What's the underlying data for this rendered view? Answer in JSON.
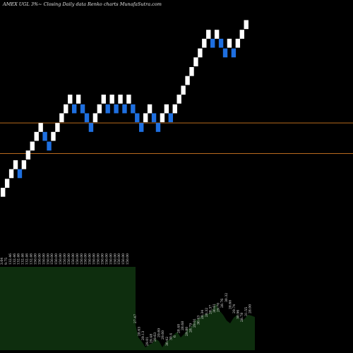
{
  "chart_data": {
    "type": "renko",
    "title": "AMEX UGL 3%~ Closing Daily data Renko charts MunafaSutra.com",
    "colors": {
      "background": "#000000",
      "up_brick": "#ffffff",
      "down_brick": "#1e6fe0",
      "reference_line": "#b86a1e",
      "volume_fill": "#0e2e0e",
      "volume_label": "#e0e0e0"
    },
    "reference_lines": [
      {
        "value": 49.5
      },
      {
        "value": 45.4
      }
    ],
    "y_range": [
      30,
      66
    ],
    "bricks": [
      {
        "index": 0,
        "direction": "up",
        "value": 40.2
      },
      {
        "index": 1,
        "direction": "up",
        "value": 41.4
      },
      {
        "index": 2,
        "direction": "up",
        "value": 42.7
      },
      {
        "index": 3,
        "direction": "up",
        "value": 43.9
      },
      {
        "index": 4,
        "direction": "down",
        "value": 42.7
      },
      {
        "index": 5,
        "direction": "up",
        "value": 43.9
      },
      {
        "index": 6,
        "direction": "up",
        "value": 45.2
      },
      {
        "index": 7,
        "direction": "up",
        "value": 46.4
      },
      {
        "index": 8,
        "direction": "up",
        "value": 47.7
      },
      {
        "index": 9,
        "direction": "up",
        "value": 48.9
      },
      {
        "index": 10,
        "direction": "down",
        "value": 47.7
      },
      {
        "index": 11,
        "direction": "down",
        "value": 46.4
      },
      {
        "index": 12,
        "direction": "up",
        "value": 47.7
      },
      {
        "index": 13,
        "direction": "up",
        "value": 48.9
      },
      {
        "index": 14,
        "direction": "up",
        "value": 50.2
      },
      {
        "index": 15,
        "direction": "up",
        "value": 51.4
      },
      {
        "index": 16,
        "direction": "up",
        "value": 52.7
      },
      {
        "index": 17,
        "direction": "down",
        "value": 51.4
      },
      {
        "index": 18,
        "direction": "up",
        "value": 52.7
      },
      {
        "index": 19,
        "direction": "down",
        "value": 51.4
      },
      {
        "index": 20,
        "direction": "down",
        "value": 50.2
      },
      {
        "index": 21,
        "direction": "down",
        "value": 48.9
      },
      {
        "index": 22,
        "direction": "up",
        "value": 50.2
      },
      {
        "index": 23,
        "direction": "up",
        "value": 51.4
      },
      {
        "index": 24,
        "direction": "up",
        "value": 52.7
      },
      {
        "index": 25,
        "direction": "down",
        "value": 51.4
      },
      {
        "index": 26,
        "direction": "up",
        "value": 52.7
      },
      {
        "index": 27,
        "direction": "down",
        "value": 51.4
      },
      {
        "index": 28,
        "direction": "up",
        "value": 52.7
      },
      {
        "index": 29,
        "direction": "down",
        "value": 51.4
      },
      {
        "index": 30,
        "direction": "up",
        "value": 52.7
      },
      {
        "index": 31,
        "direction": "down",
        "value": 51.4
      },
      {
        "index": 32,
        "direction": "down",
        "value": 50.2
      },
      {
        "index": 33,
        "direction": "down",
        "value": 48.9
      },
      {
        "index": 34,
        "direction": "up",
        "value": 50.2
      },
      {
        "index": 35,
        "direction": "up",
        "value": 51.4
      },
      {
        "index": 36,
        "direction": "down",
        "value": 50.2
      },
      {
        "index": 37,
        "direction": "down",
        "value": 48.9
      },
      {
        "index": 38,
        "direction": "up",
        "value": 50.2
      },
      {
        "index": 39,
        "direction": "up",
        "value": 51.4
      },
      {
        "index": 40,
        "direction": "down",
        "value": 50.2
      },
      {
        "index": 41,
        "direction": "up",
        "value": 51.4
      },
      {
        "index": 42,
        "direction": "up",
        "value": 52.7
      },
      {
        "index": 43,
        "direction": "up",
        "value": 53.9
      },
      {
        "index": 44,
        "direction": "up",
        "value": 55.2
      },
      {
        "index": 45,
        "direction": "up",
        "value": 56.4
      },
      {
        "index": 46,
        "direction": "up",
        "value": 57.7
      },
      {
        "index": 47,
        "direction": "up",
        "value": 58.9
      },
      {
        "index": 48,
        "direction": "up",
        "value": 60.2
      },
      {
        "index": 49,
        "direction": "up",
        "value": 61.4
      },
      {
        "index": 50,
        "direction": "down",
        "value": 60.2
      },
      {
        "index": 51,
        "direction": "up",
        "value": 61.4
      },
      {
        "index": 52,
        "direction": "down",
        "value": 60.2
      },
      {
        "index": 53,
        "direction": "down",
        "value": 58.9
      },
      {
        "index": 54,
        "direction": "up",
        "value": 60.2
      },
      {
        "index": 55,
        "direction": "down",
        "value": 58.9
      },
      {
        "index": 56,
        "direction": "up",
        "value": 60.2
      },
      {
        "index": 57,
        "direction": "up",
        "value": 61.4
      },
      {
        "index": 58,
        "direction": "up",
        "value": 62.7
      }
    ],
    "volume_high_labels": [
      "3.64",
      "9.75",
      "132.46",
      "132.46",
      "132.46",
      "132.46",
      "132.46",
      "132.46",
      "150.00",
      "150.00",
      "150.00",
      "150.00",
      "150.00",
      "150.00",
      "150.00",
      "150.00",
      "150.00",
      "150.00",
      "150.00",
      "150.00",
      "150.00",
      "150.00",
      "150.00",
      "150.00",
      "150.00",
      "150.00",
      "150.00",
      "150.00",
      "150.00",
      "150.00",
      "150.00"
    ],
    "volume_low_labels": [
      "27.47",
      "28.63",
      "29.13",
      "29.01",
      "29.48",
      "29.63",
      "29.69",
      "29.60",
      "30.42",
      "30.4",
      "6",
      "28.40",
      "28.68",
      "29.80",
      "28.79",
      "29.01",
      "30.43",
      "28.34",
      "28.32",
      "28.37",
      "30.61",
      "29.70",
      "28.76",
      "30.32",
      "28.60",
      "29.74",
      "30.96",
      "28.78",
      "31.55",
      "28.00"
    ]
  }
}
